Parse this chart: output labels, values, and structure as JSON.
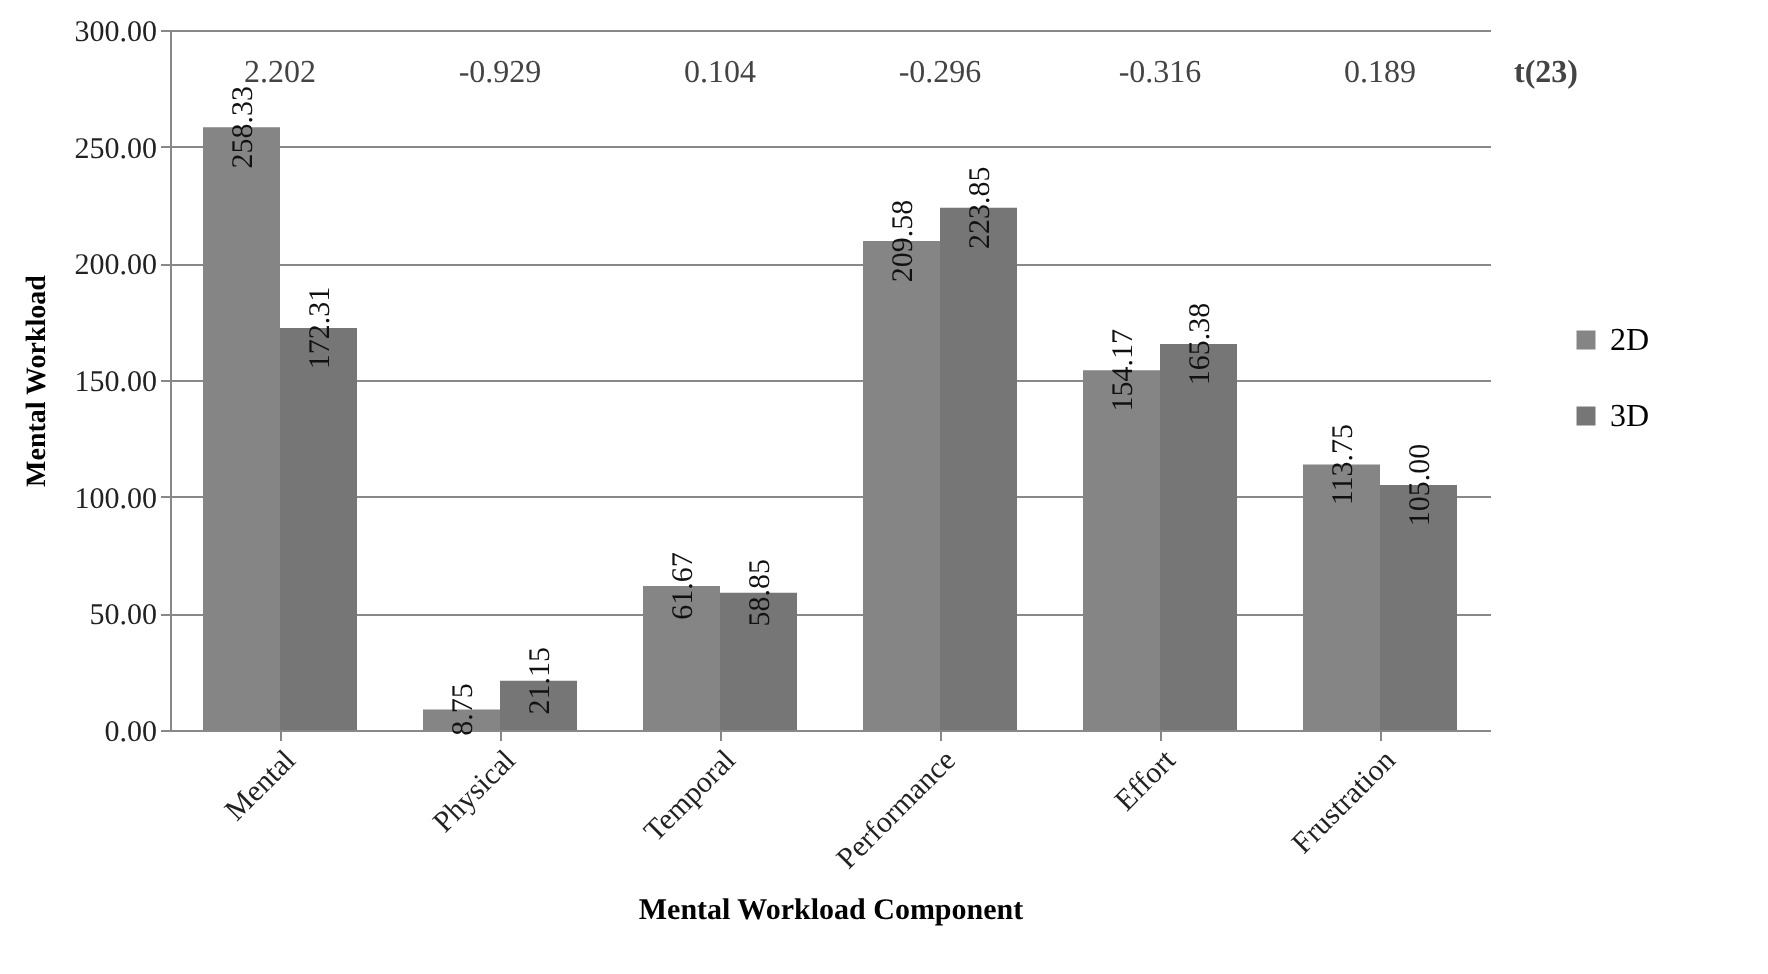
{
  "chart_data": {
    "type": "bar",
    "xlabel": "Mental Workload Component",
    "ylabel": "Mental Workload",
    "categories": [
      "Mental",
      "Physical",
      "Temporal",
      "Performance",
      "Effort",
      "Frustration"
    ],
    "series": [
      {
        "name": "2D",
        "color": "#858585",
        "values": [
          258.33,
          8.75,
          61.67,
          209.58,
          154.17,
          113.75
        ],
        "value_labels": [
          "258.33",
          "8.75",
          "61.67",
          "209.58",
          "154.17",
          "113.75"
        ]
      },
      {
        "name": "3D",
        "color": "#767676",
        "values": [
          172.31,
          21.15,
          58.85,
          223.85,
          165.38,
          105.0
        ],
        "value_labels": [
          "172.31",
          "21.15",
          "58.85",
          "223.85",
          "165.38",
          "105.00"
        ]
      }
    ],
    "ylim": [
      0,
      300
    ],
    "yticks": [
      {
        "value": 0,
        "label": "0.00"
      },
      {
        "value": 50,
        "label": "50.00"
      },
      {
        "value": 100,
        "label": "100.00"
      },
      {
        "value": 150,
        "label": "150.00"
      },
      {
        "value": 200,
        "label": "200.00"
      },
      {
        "value": 250,
        "label": "250.00"
      },
      {
        "value": 300,
        "label": "300.00"
      }
    ],
    "grid": "y",
    "legend": "right",
    "annotations": [
      "2.202",
      "-0.929",
      "0.104",
      "-0.296",
      "-0.316",
      "0.189",
      "t(23)"
    ]
  }
}
